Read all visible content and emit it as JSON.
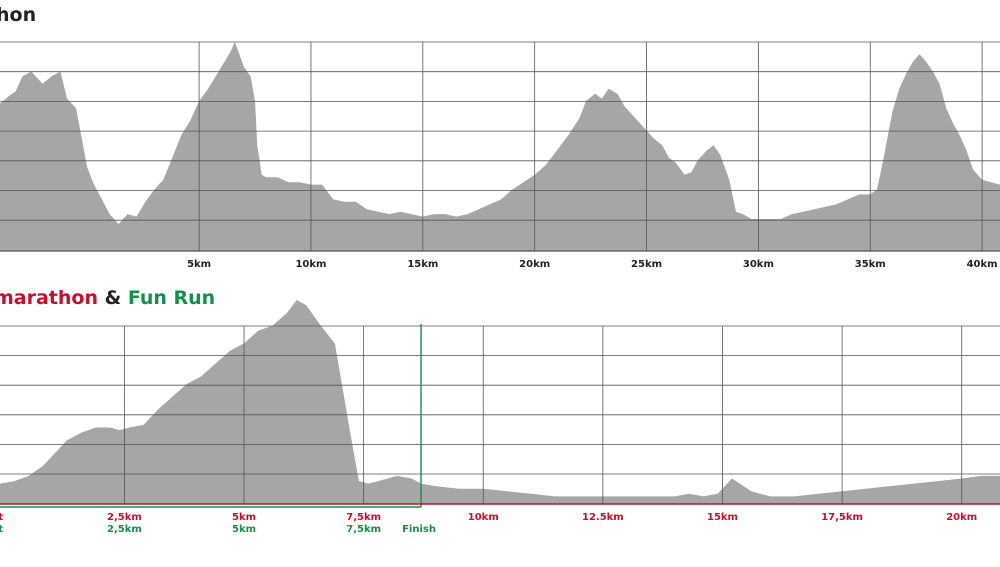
{
  "chart_data": [
    {
      "type": "area",
      "title": "hon",
      "colors": {
        "fill": "#a6a6a6",
        "grid": "#555555",
        "ticks": "#222222"
      },
      "xlim": [
        -3.9,
        40.8
      ],
      "ticks": [
        {
          "x": 5,
          "label": "5km"
        },
        {
          "x": 10,
          "label": "10km"
        },
        {
          "x": 15,
          "label": "15km"
        },
        {
          "x": 20,
          "label": "20km"
        },
        {
          "x": 25,
          "label": "25km"
        },
        {
          "x": 30,
          "label": "30km"
        },
        {
          "x": 35,
          "label": "35km"
        },
        {
          "x": 40,
          "label": "40km"
        }
      ],
      "x": [
        -3.9,
        -3.5,
        -3.2,
        -2.9,
        -2.5,
        -2.0,
        -1.6,
        -1.2,
        -0.9,
        -0.5,
        0.0,
        0.3,
        0.6,
        1.0,
        1.4,
        1.8,
        2.2,
        2.6,
        3.0,
        3.4,
        3.8,
        4.2,
        4.6,
        5.0,
        5.4,
        5.8,
        6.0,
        6.2,
        6.4,
        6.6,
        6.8,
        7.0,
        7.3,
        7.5,
        7.6,
        7.8,
        8.0,
        8.5,
        9.0,
        9.5,
        10.0,
        10.5,
        11.0,
        11.5,
        12.0,
        12.5,
        13.0,
        13.5,
        14.0,
        14.5,
        15.0,
        15.5,
        16.0,
        16.5,
        17.0,
        17.5,
        18.0,
        18.5,
        19.0,
        19.5,
        20.0,
        20.5,
        21.0,
        21.5,
        22.0,
        22.3,
        22.7,
        23.0,
        23.3,
        23.7,
        24.0,
        24.3,
        24.7,
        25.0,
        25.3,
        25.7,
        26.0,
        26.3,
        26.7,
        27.0,
        27.3,
        27.7,
        28.0,
        28.3,
        28.7,
        29.0,
        29.3,
        29.7,
        30.0,
        30.5,
        31.0,
        31.5,
        32.0,
        32.5,
        33.0,
        33.5,
        34.0,
        34.5,
        35.0,
        35.3,
        35.6,
        36.0,
        36.3,
        36.6,
        36.9,
        37.2,
        37.5,
        37.8,
        38.1,
        38.4,
        38.7,
        39.0,
        39.3,
        39.6,
        40.0,
        40.4,
        40.8
      ],
      "y": [
        245,
        248,
        250,
        256,
        258,
        253,
        256,
        258,
        247,
        243,
        219,
        212,
        207,
        200,
        196,
        200,
        199,
        205,
        210,
        214,
        223,
        232,
        238,
        246,
        251,
        257,
        260,
        263,
        266,
        270,
        265,
        260,
        256,
        246,
        228,
        216,
        215,
        215,
        213,
        213,
        212,
        212,
        206,
        205,
        205,
        202,
        201,
        200,
        201,
        200,
        199,
        200,
        200,
        199,
        200,
        202,
        204,
        206,
        210,
        213,
        216,
        220,
        226,
        232,
        239,
        246,
        249,
        247,
        251,
        249,
        244,
        241,
        237,
        234,
        231,
        228,
        223,
        221,
        216,
        217,
        222,
        226,
        228,
        224,
        214,
        201,
        200,
        198,
        198,
        198,
        198,
        200,
        201,
        202,
        203,
        204,
        206,
        208,
        208,
        210,
        223,
        242,
        251,
        257,
        262,
        265,
        262,
        258,
        253,
        243,
        237,
        232,
        226,
        218,
        214,
        213,
        212
      ],
      "ylim": [
        185,
        270
      ]
    },
    {
      "type": "area",
      "title": "marathon",
      "title_parts": [
        {
          "text": "marathon",
          "color": "#c8102e"
        },
        {
          "text": " & ",
          "color": "#222222"
        },
        {
          "text": "Fun Run",
          "color": "#13914a"
        }
      ],
      "colors": {
        "fill": "#a6a6a6",
        "grid": "#555555",
        "red": "#c8102e",
        "green": "#13914a"
      },
      "xlim": [
        -0.1,
        20.8
      ],
      "ticks_red": [
        {
          "x": 0,
          "label": "t"
        },
        {
          "x": 2.5,
          "label": "2,5km"
        },
        {
          "x": 5,
          "label": "5km"
        },
        {
          "x": 7.5,
          "label": "7,5km"
        },
        {
          "x": 10,
          "label": "10km"
        },
        {
          "x": 12.5,
          "label": "12.5km"
        },
        {
          "x": 15,
          "label": "15km"
        },
        {
          "x": 17.5,
          "label": "17,5km"
        },
        {
          "x": 20,
          "label": "20km"
        }
      ],
      "ticks_green": [
        {
          "x": 0,
          "label": "t"
        },
        {
          "x": 2.5,
          "label": "2,5km"
        },
        {
          "x": 5,
          "label": "5km"
        },
        {
          "x": 7.5,
          "label": "7,5km"
        }
      ],
      "finish": {
        "x": 8.7,
        "label": "Finish"
      },
      "x": [
        -0.1,
        0.2,
        0.5,
        0.8,
        1.0,
        1.3,
        1.6,
        1.9,
        2.2,
        2.4,
        2.6,
        2.9,
        3.2,
        3.5,
        3.8,
        4.1,
        4.4,
        4.7,
        5.0,
        5.3,
        5.6,
        5.9,
        6.1,
        6.3,
        6.6,
        6.9,
        7.2,
        7.4,
        7.6,
        7.8,
        8.0,
        8.2,
        8.5,
        8.7,
        9.0,
        9.5,
        10.0,
        10.5,
        11.0,
        11.5,
        12.0,
        12.5,
        13.0,
        13.5,
        14.0,
        14.3,
        14.6,
        14.9,
        15.2,
        15.6,
        16.0,
        16.5,
        17.0,
        17.5,
        18.0,
        18.5,
        19.0,
        19.5,
        20.0,
        20.4,
        20.8
      ],
      "y": [
        8,
        9,
        11,
        15,
        19,
        25,
        28,
        30,
        30,
        29,
        30,
        31,
        37,
        42,
        47,
        50,
        55,
        60,
        63,
        68,
        70,
        75,
        80,
        78,
        70,
        63,
        30,
        9,
        8,
        9,
        10,
        11,
        10,
        8,
        7,
        6,
        6,
        5,
        4,
        3,
        3,
        3,
        3,
        3,
        3,
        4,
        3,
        4,
        10,
        5,
        3,
        3,
        4,
        5,
        6,
        7,
        8,
        9,
        10,
        11,
        11
      ],
      "ylim": [
        0,
        80
      ]
    }
  ]
}
